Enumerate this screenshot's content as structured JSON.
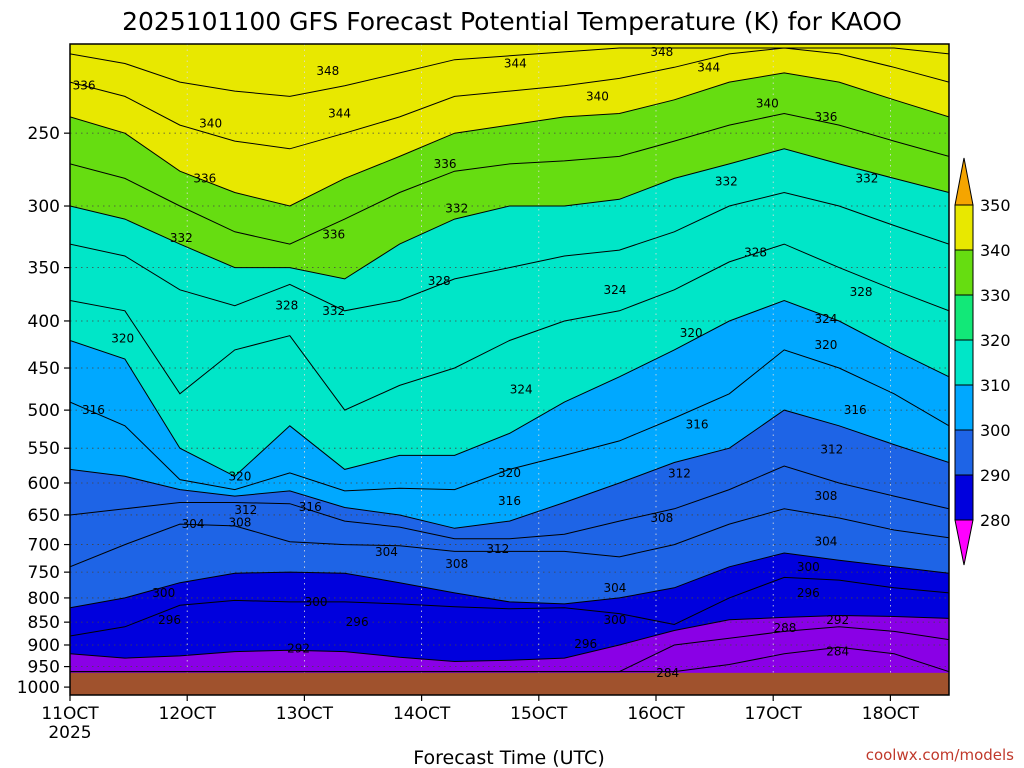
{
  "chart_data": {
    "type": "heatmap",
    "title": "2025101100 GFS Forecast Potential Temperature (K) for KAOO",
    "xlabel": "Forecast Time (UTC)",
    "x_start_year": "2025",
    "credit": "coolwx.com/models",
    "x_ticks": [
      {
        "label": "11OCT",
        "day": 11
      },
      {
        "label": "12OCT",
        "day": 12
      },
      {
        "label": "13OCT",
        "day": 13
      },
      {
        "label": "14OCT",
        "day": 14
      },
      {
        "label": "15OCT",
        "day": 15
      },
      {
        "label": "16OCT",
        "day": 16
      },
      {
        "label": "17OCT",
        "day": 17
      },
      {
        "label": "18OCT",
        "day": 18
      }
    ],
    "x_range_days": [
      11,
      18.5
    ],
    "y_ticks": [
      250,
      300,
      350,
      400,
      450,
      500,
      550,
      600,
      650,
      700,
      750,
      800,
      850,
      900,
      950,
      1000
    ],
    "y_range_hpa": [
      200,
      1020
    ],
    "y_scale": "log",
    "surface_pressure_hpa": 965,
    "colorbar": {
      "levels": [
        280,
        290,
        300,
        310,
        320,
        330,
        340,
        350
      ],
      "colors": [
        "#ff00ff",
        "#8a00e6",
        "#5a1ef0",
        "#0000dd",
        "#1e64e6",
        "#00a8ff",
        "#00e6c8",
        "#12e878",
        "#66dd11",
        "#e8e800",
        "#f5a500"
      ],
      "labels": [
        "280",
        "290",
        "300",
        "310",
        "320",
        "330",
        "340",
        "350"
      ]
    },
    "isentropes": [
      {
        "theta": 284,
        "p": [
          962,
          962,
          962,
          962,
          962,
          962,
          962,
          962,
          962,
          962,
          962,
          962,
          945,
          920,
          905,
          920,
          962
        ]
      },
      {
        "theta": 288,
        "p": [
          962,
          962,
          962,
          962,
          962,
          962,
          962,
          962,
          962,
          962,
          962,
          900,
          885,
          870,
          860,
          870,
          888
        ]
      },
      {
        "theta": 292,
        "p": [
          920,
          930,
          925,
          915,
          912,
          915,
          928,
          938,
          935,
          930,
          900,
          868,
          845,
          840,
          836,
          838,
          842
        ]
      },
      {
        "theta": 296,
        "p": [
          880,
          860,
          815,
          805,
          808,
          808,
          812,
          818,
          822,
          820,
          832,
          855,
          800,
          760,
          765,
          780,
          790
        ]
      },
      {
        "theta": 300,
        "p": [
          820,
          800,
          770,
          752,
          750,
          752,
          770,
          790,
          808,
          812,
          800,
          780,
          740,
          715,
          728,
          740,
          752
        ]
      },
      {
        "theta": 304,
        "p": [
          740,
          700,
          665,
          668,
          695,
          700,
          702,
          712,
          712,
          712,
          722,
          700,
          665,
          640,
          655,
          675,
          688
        ]
      },
      {
        "theta": 308,
        "p": [
          650,
          640,
          630,
          630,
          632,
          660,
          670,
          690,
          690,
          682,
          660,
          640,
          610,
          575,
          600,
          620,
          640
        ]
      },
      {
        "theta": 312,
        "p": [
          580,
          590,
          610,
          620,
          612,
          638,
          650,
          672,
          660,
          630,
          600,
          570,
          550,
          500,
          520,
          545,
          570
        ]
      },
      {
        "theta": 316,
        "p": [
          490,
          520,
          595,
          610,
          585,
          612,
          608,
          610,
          580,
          560,
          540,
          510,
          480,
          430,
          450,
          480,
          520
        ]
      },
      {
        "theta": 320,
        "p": [
          420,
          440,
          550,
          590,
          520,
          580,
          560,
          560,
          530,
          490,
          460,
          430,
          400,
          380,
          400,
          430,
          460
        ]
      },
      {
        "theta": 324,
        "p": [
          380,
          390,
          480,
          430,
          415,
          500,
          470,
          450,
          420,
          400,
          390,
          370,
          345,
          330,
          350,
          370,
          390
        ]
      },
      {
        "theta": 328,
        "p": [
          330,
          340,
          370,
          385,
          365,
          390,
          380,
          360,
          350,
          340,
          335,
          320,
          300,
          290,
          300,
          315,
          330
        ]
      },
      {
        "theta": 332,
        "p": [
          300,
          310,
          330,
          350,
          350,
          360,
          330,
          310,
          300,
          300,
          295,
          280,
          270,
          260,
          270,
          280,
          290
        ]
      },
      {
        "theta": 336,
        "p": [
          270,
          280,
          300,
          320,
          330,
          310,
          290,
          275,
          270,
          268,
          265,
          255,
          245,
          238,
          245,
          255,
          265
        ]
      },
      {
        "theta": 340,
        "p": [
          240,
          250,
          275,
          290,
          300,
          280,
          265,
          250,
          245,
          240,
          238,
          230,
          220,
          215,
          220,
          230,
          240
        ]
      },
      {
        "theta": 344,
        "p": [
          220,
          228,
          245,
          255,
          260,
          250,
          240,
          228,
          225,
          222,
          218,
          212,
          205,
          202,
          205,
          212,
          220
        ]
      },
      {
        "theta": 348,
        "p": [
          205,
          210,
          220,
          225,
          228,
          222,
          215,
          208,
          206,
          204,
          202,
          202,
          202,
          202,
          202,
          202,
          205
        ]
      }
    ],
    "isentrope_labels": [
      {
        "text": "336",
        "day": 11.12,
        "p": 222
      },
      {
        "text": "348",
        "day": 13.2,
        "p": 214
      },
      {
        "text": "344",
        "day": 14.8,
        "p": 210
      },
      {
        "text": "348",
        "day": 16.05,
        "p": 204
      },
      {
        "text": "344",
        "day": 16.45,
        "p": 212
      },
      {
        "text": "340",
        "day": 15.5,
        "p": 228
      },
      {
        "text": "340",
        "day": 16.95,
        "p": 232
      },
      {
        "text": "344",
        "day": 13.3,
        "p": 238
      },
      {
        "text": "340",
        "day": 12.2,
        "p": 244
      },
      {
        "text": "336",
        "day": 17.45,
        "p": 240
      },
      {
        "text": "336",
        "day": 12.15,
        "p": 280
      },
      {
        "text": "336",
        "day": 14.2,
        "p": 270
      },
      {
        "text": "332",
        "day": 16.6,
        "p": 282
      },
      {
        "text": "332",
        "day": 17.8,
        "p": 280
      },
      {
        "text": "336",
        "day": 13.25,
        "p": 322
      },
      {
        "text": "332",
        "day": 11.95,
        "p": 325
      },
      {
        "text": "332",
        "day": 14.3,
        "p": 302
      },
      {
        "text": "328",
        "day": 16.85,
        "p": 337
      },
      {
        "text": "328",
        "day": 14.15,
        "p": 362
      },
      {
        "text": "324",
        "day": 15.65,
        "p": 370
      },
      {
        "text": "328",
        "day": 17.75,
        "p": 372
      },
      {
        "text": "328",
        "day": 12.85,
        "p": 385
      },
      {
        "text": "332",
        "day": 13.25,
        "p": 390
      },
      {
        "text": "324",
        "day": 17.45,
        "p": 398
      },
      {
        "text": "320",
        "day": 11.45,
        "p": 418
      },
      {
        "text": "320",
        "day": 16.3,
        "p": 412
      },
      {
        "text": "320",
        "day": 17.45,
        "p": 425
      },
      {
        "text": "324",
        "day": 14.85,
        "p": 475
      },
      {
        "text": "316",
        "day": 11.2,
        "p": 500
      },
      {
        "text": "316",
        "day": 16.35,
        "p": 518
      },
      {
        "text": "316",
        "day": 17.7,
        "p": 500
      },
      {
        "text": "312",
        "day": 17.5,
        "p": 552
      },
      {
        "text": "312",
        "day": 16.2,
        "p": 586
      },
      {
        "text": "320",
        "day": 12.45,
        "p": 590
      },
      {
        "text": "320",
        "day": 14.75,
        "p": 585
      },
      {
        "text": "316",
        "day": 14.75,
        "p": 628
      },
      {
        "text": "308",
        "day": 17.45,
        "p": 620
      },
      {
        "text": "316",
        "day": 13.05,
        "p": 637
      },
      {
        "text": "312",
        "day": 12.5,
        "p": 642
      },
      {
        "text": "308",
        "day": 12.45,
        "p": 662
      },
      {
        "text": "304",
        "day": 12.05,
        "p": 665
      },
      {
        "text": "308",
        "day": 16.05,
        "p": 655
      },
      {
        "text": "304",
        "day": 17.45,
        "p": 695
      },
      {
        "text": "304",
        "day": 13.7,
        "p": 713
      },
      {
        "text": "312",
        "day": 14.65,
        "p": 708
      },
      {
        "text": "308",
        "day": 14.3,
        "p": 735
      },
      {
        "text": "300",
        "day": 17.3,
        "p": 740
      },
      {
        "text": "300",
        "day": 11.8,
        "p": 790
      },
      {
        "text": "296",
        "day": 17.3,
        "p": 790
      },
      {
        "text": "304",
        "day": 15.65,
        "p": 780
      },
      {
        "text": "300",
        "day": 13.1,
        "p": 808
      },
      {
        "text": "296",
        "day": 11.85,
        "p": 845
      },
      {
        "text": "296",
        "day": 13.45,
        "p": 850
      },
      {
        "text": "292",
        "day": 17.55,
        "p": 845
      },
      {
        "text": "300",
        "day": 15.65,
        "p": 845
      },
      {
        "text": "288",
        "day": 17.1,
        "p": 862
      },
      {
        "text": "292",
        "day": 12.95,
        "p": 908
      },
      {
        "text": "296",
        "day": 15.4,
        "p": 898
      },
      {
        "text": "284",
        "day": 17.55,
        "p": 915
      },
      {
        "text": "284",
        "day": 16.1,
        "p": 965
      }
    ]
  }
}
